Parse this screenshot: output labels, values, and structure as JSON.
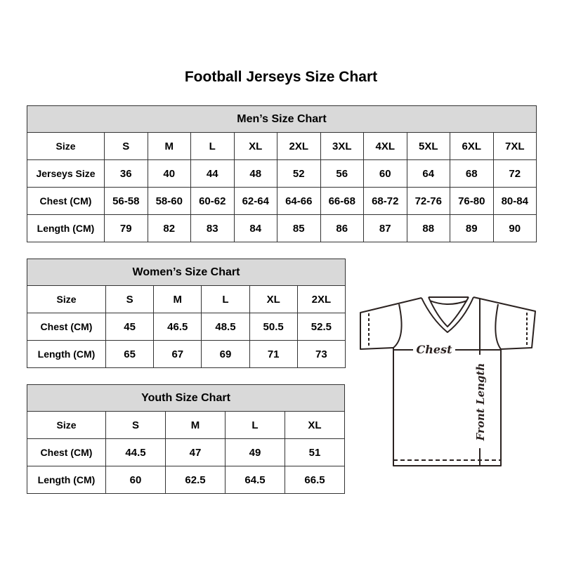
{
  "title": "Football Jerseys Size Chart",
  "mens": {
    "heading": "Men’s Size Chart",
    "rows": [
      [
        "Size",
        "S",
        "M",
        "L",
        "XL",
        "2XL",
        "3XL",
        "4XL",
        "5XL",
        "6XL",
        "7XL"
      ],
      [
        "Jerseys Size",
        "36",
        "40",
        "44",
        "48",
        "52",
        "56",
        "60",
        "64",
        "68",
        "72"
      ],
      [
        "Chest (CM)",
        "56-58",
        "58-60",
        "60-62",
        "62-64",
        "64-66",
        "66-68",
        "68-72",
        "72-76",
        "76-80",
        "80-84"
      ],
      [
        "Length (CM)",
        "79",
        "82",
        "83",
        "84",
        "85",
        "86",
        "87",
        "88",
        "89",
        "90"
      ]
    ]
  },
  "womens": {
    "heading": "Women’s Size Chart",
    "rows": [
      [
        "Size",
        "S",
        "M",
        "L",
        "XL",
        "2XL"
      ],
      [
        "Chest (CM)",
        "45",
        "46.5",
        "48.5",
        "50.5",
        "52.5"
      ],
      [
        "Length (CM)",
        "65",
        "67",
        "69",
        "71",
        "73"
      ]
    ]
  },
  "youth": {
    "heading": "Youth Size Chart",
    "rows": [
      [
        "Size",
        "S",
        "M",
        "L",
        "XL"
      ],
      [
        "Chest (CM)",
        "44.5",
        "47",
        "49",
        "51"
      ],
      [
        "Length (CM)",
        "60",
        "62.5",
        "64.5",
        "66.5"
      ]
    ]
  },
  "diagram": {
    "chest_label": "Chest",
    "length_label": "Front Length"
  },
  "colors": {
    "header_bg": "#d9d9d9",
    "border": "#333333",
    "shirt_stroke": "#2b2220"
  }
}
